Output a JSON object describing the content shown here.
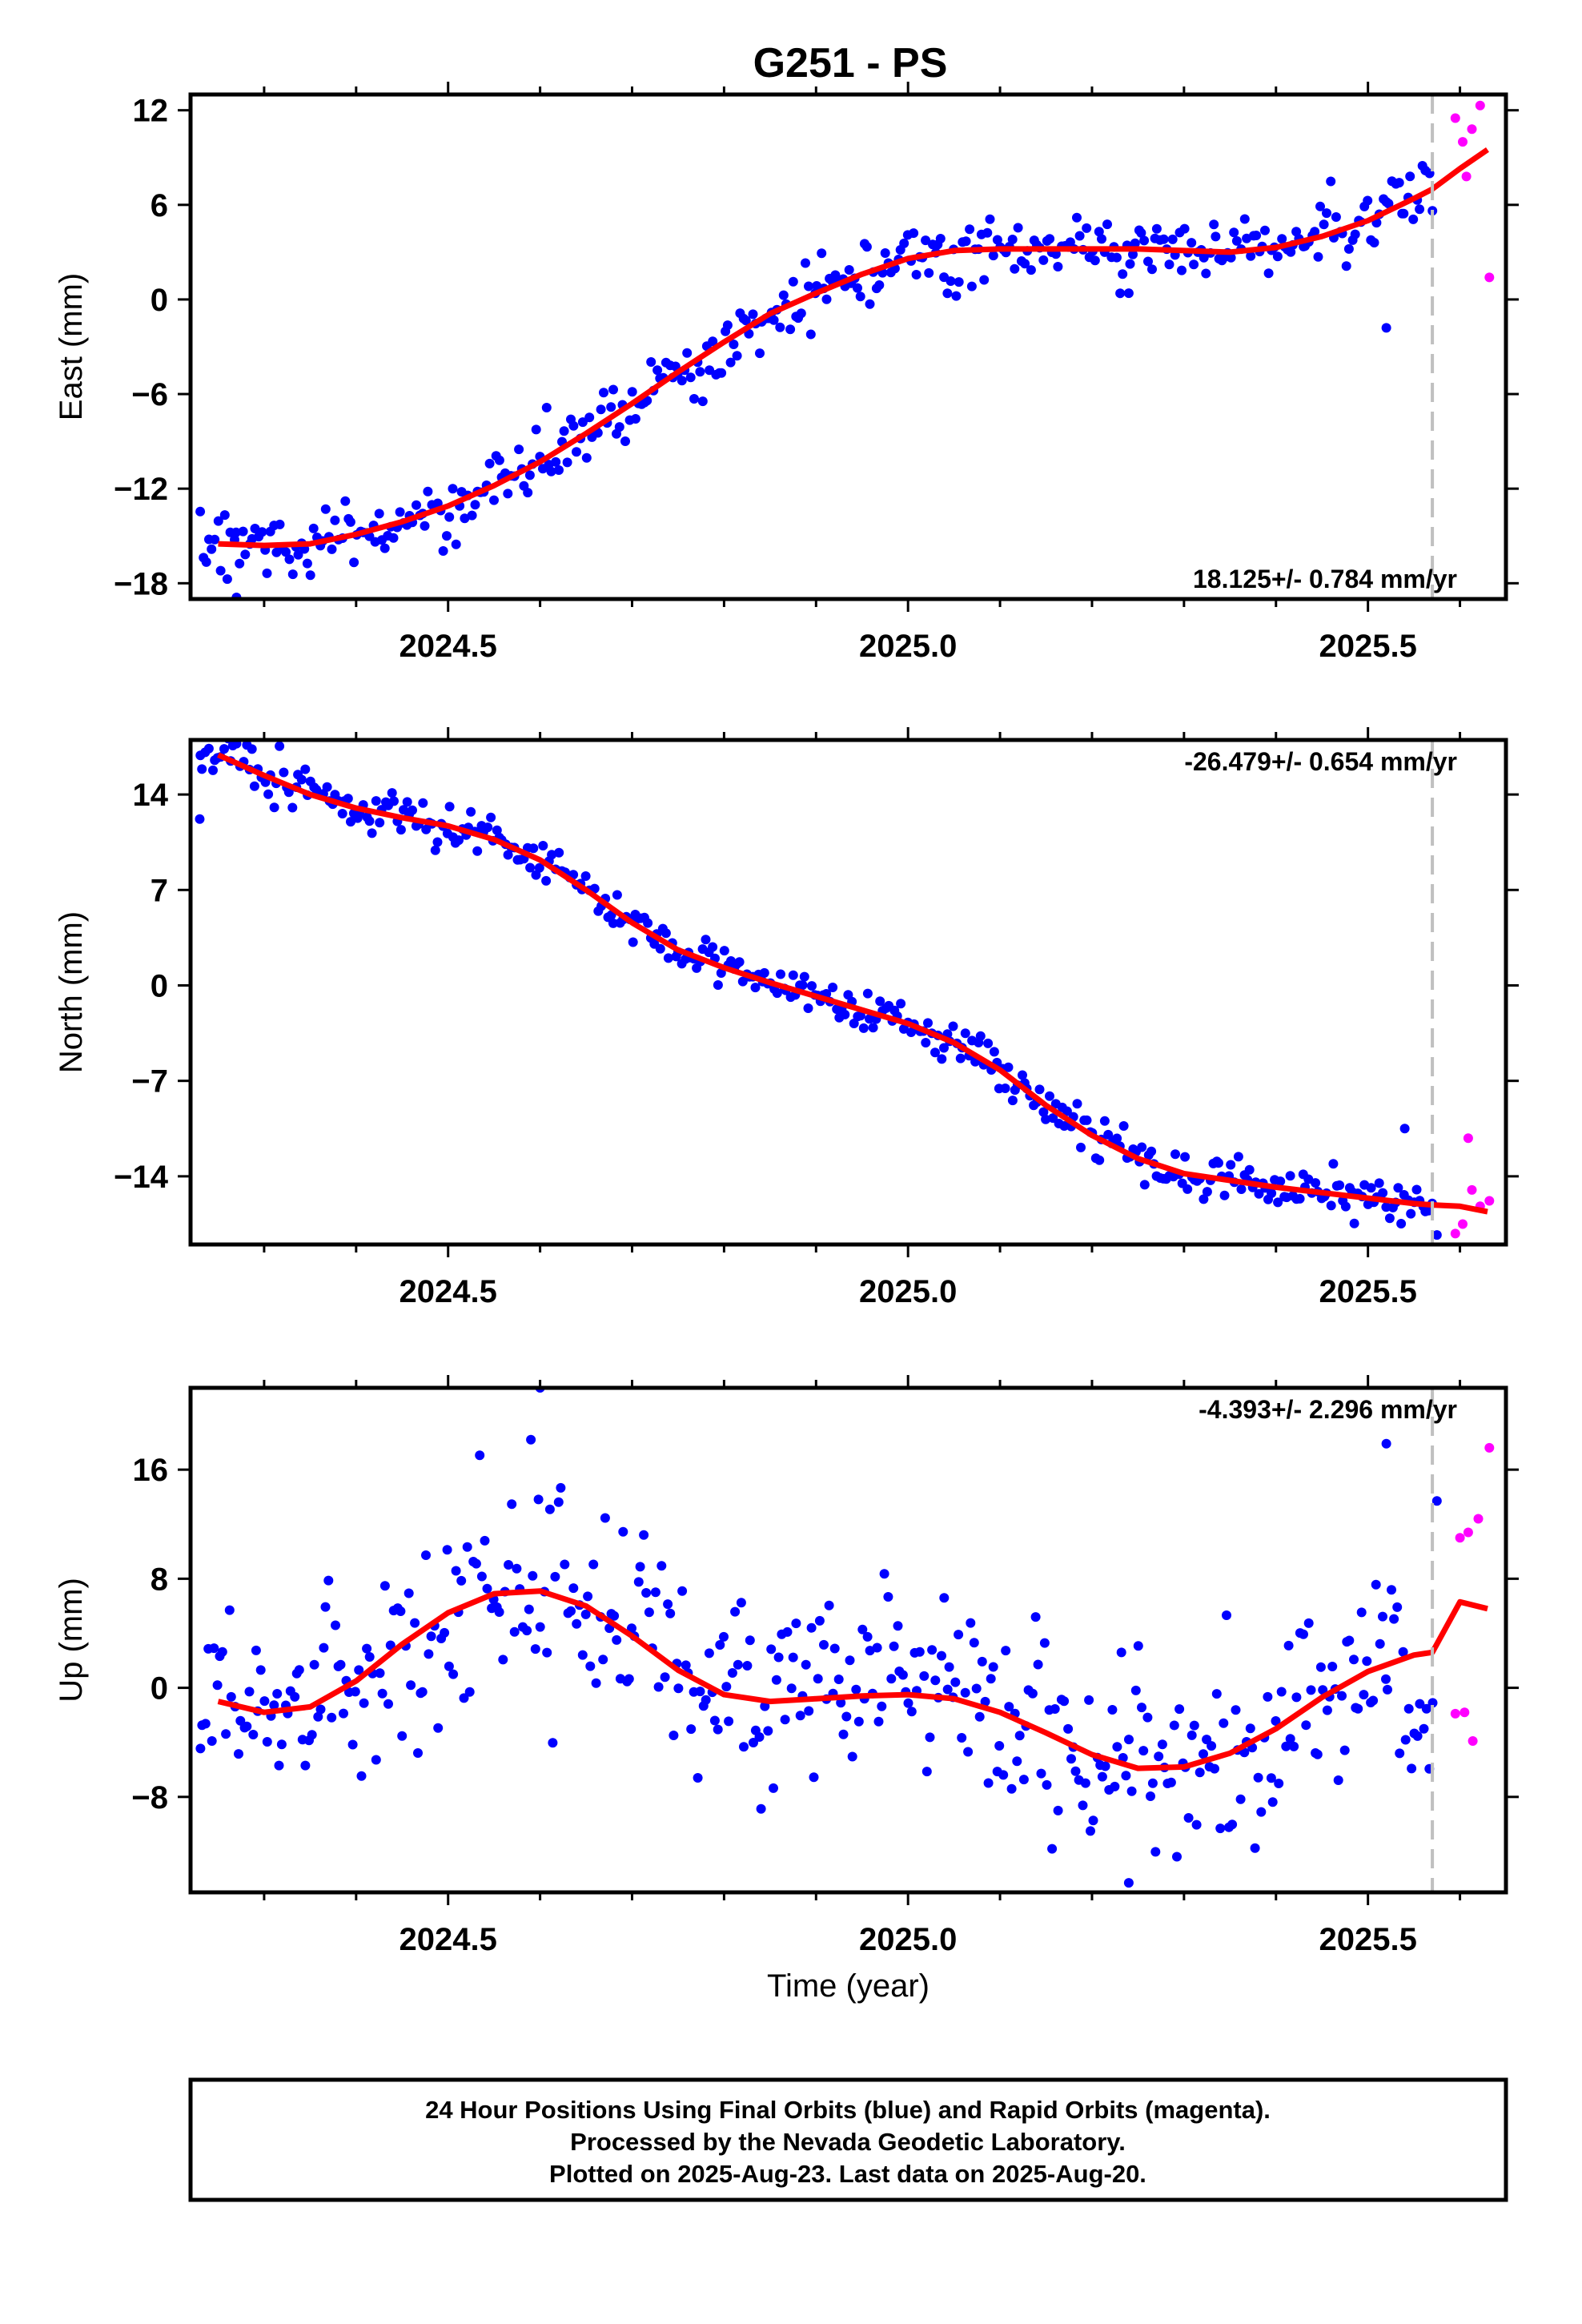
{
  "title": "G251 - PS",
  "colors": {
    "final": "#0000ff",
    "rapid": "#ff00ff",
    "model": "#ff0000",
    "cutoff": "#c0c0c0"
  },
  "chart_data": [
    {
      "type": "scatter",
      "component": "east",
      "ylabel": "East (mm)",
      "xlabel": "",
      "xlim": [
        2024.22,
        2025.65
      ],
      "ylim": [
        -19,
        13
      ],
      "xticks": [
        2024.5,
        2025.0,
        2025.5
      ],
      "xtick_labels": [
        "2024.5",
        "2025.0",
        "2025.5"
      ],
      "yticks": [
        12,
        6,
        0,
        -6,
        -12,
        -18
      ],
      "ytick_labels": [
        "12",
        "6",
        "0",
        "−6",
        "−12",
        "−18"
      ],
      "rate_text": "18.125+/- 0.784 mm/yr",
      "rate_position": "bottom-right",
      "last_final_epoch": 2025.57,
      "model": {
        "x": [
          2024.25,
          2024.3,
          2024.35,
          2024.4,
          2024.45,
          2024.5,
          2024.55,
          2024.6,
          2024.65,
          2024.7,
          2024.75,
          2024.8,
          2024.85,
          2024.9,
          2024.95,
          2025.0,
          2025.05,
          2025.1,
          2025.15,
          2025.2,
          2025.25,
          2025.3,
          2025.35,
          2025.4,
          2025.45,
          2025.5,
          2025.55,
          2025.57,
          2025.6,
          2025.63
        ],
        "y": [
          -15.5,
          -15.6,
          -15.5,
          -14.9,
          -14.1,
          -13.1,
          -11.8,
          -10.3,
          -8.5,
          -6.6,
          -4.6,
          -2.7,
          -0.9,
          0.4,
          1.6,
          2.6,
          3.1,
          3.2,
          3.2,
          3.2,
          3.2,
          3.1,
          3.0,
          3.3,
          4.0,
          5.0,
          6.4,
          7.0,
          8.3,
          9.5
        ]
      },
      "scatter_spec": {
        "x_start": 2024.23,
        "x_end": 2025.57,
        "n": 400,
        "noise": 0.95,
        "outliers": [
          [
            2024.27,
            -18.9
          ],
          [
            2025.24,
            0.4
          ],
          [
            2025.52,
            -1.8
          ]
        ]
      },
      "rapid_points": {
        "x": [
          2025.595,
          2025.603,
          2025.607,
          2025.613,
          2025.622,
          2025.632
        ],
        "y": [
          11.5,
          10.0,
          7.8,
          10.8,
          12.3,
          1.4
        ]
      }
    },
    {
      "type": "scatter",
      "component": "north",
      "ylabel": "North (mm)",
      "xlabel": "",
      "xlim": [
        2024.22,
        2025.65
      ],
      "ylim": [
        -19,
        18
      ],
      "xticks": [
        2024.5,
        2025.0,
        2025.5
      ],
      "xtick_labels": [
        "2024.5",
        "2025.0",
        "2025.5"
      ],
      "yticks": [
        14,
        7,
        0,
        -7,
        -14
      ],
      "ytick_labels": [
        "14",
        "7",
        "0",
        "−7",
        "−14"
      ],
      "rate_text": "-26.479+/- 0.654 mm/yr",
      "rate_position": "top-right",
      "last_final_epoch": 2025.57,
      "model": {
        "x": [
          2024.25,
          2024.3,
          2024.35,
          2024.4,
          2024.45,
          2024.5,
          2024.55,
          2024.6,
          2024.65,
          2024.7,
          2024.75,
          2024.8,
          2024.85,
          2024.9,
          2024.95,
          2025.0,
          2025.05,
          2025.1,
          2025.15,
          2025.2,
          2025.25,
          2025.3,
          2025.35,
          2025.4,
          2025.45,
          2025.5,
          2025.55,
          2025.57,
          2025.6,
          2025.63
        ],
        "y": [
          16.9,
          15.4,
          14.0,
          13.0,
          12.3,
          11.7,
          10.7,
          9.2,
          7.0,
          4.6,
          2.6,
          1.3,
          0.2,
          -0.8,
          -1.8,
          -2.8,
          -4.2,
          -6.2,
          -8.8,
          -11.0,
          -12.7,
          -13.8,
          -14.3,
          -14.8,
          -15.2,
          -15.6,
          -16.0,
          -16.1,
          -16.2,
          -16.6
        ]
      },
      "scatter_spec": {
        "x_start": 2024.23,
        "x_end": 2025.57,
        "n": 400,
        "noise": 0.8,
        "outliers": [
          [
            2024.23,
            12.2
          ],
          [
            2025.54,
            -10.5
          ],
          [
            2025.575,
            -18.3
          ]
        ]
      },
      "rapid_points": {
        "x": [
          2025.595,
          2025.603,
          2025.609,
          2025.613,
          2025.622,
          2025.632
        ],
        "y": [
          -18.2,
          -17.5,
          -11.2,
          -15.0,
          -16.2,
          -15.8
        ]
      }
    },
    {
      "type": "scatter",
      "component": "up",
      "ylabel": "Up (mm)",
      "xlabel": "Time (year)",
      "xlim": [
        2024.22,
        2025.65
      ],
      "ylim": [
        -15,
        22
      ],
      "xticks": [
        2024.5,
        2025.0,
        2025.5
      ],
      "xtick_labels": [
        "2024.5",
        "2025.0",
        "2025.5"
      ],
      "yticks": [
        16,
        8,
        0,
        -8
      ],
      "ytick_labels": [
        "16",
        "8",
        "0",
        "−8"
      ],
      "rate_text": "-4.393+/- 2.296 mm/yr",
      "rate_position": "top-right",
      "last_final_epoch": 2025.57,
      "model": {
        "x": [
          2024.25,
          2024.3,
          2024.35,
          2024.4,
          2024.45,
          2024.5,
          2024.55,
          2024.6,
          2024.65,
          2024.7,
          2024.75,
          2024.8,
          2024.85,
          2024.9,
          2024.95,
          2025.0,
          2025.05,
          2025.1,
          2025.15,
          2025.2,
          2025.25,
          2025.3,
          2025.35,
          2025.4,
          2025.45,
          2025.5,
          2025.55,
          2025.57,
          2025.6,
          2025.63
        ],
        "y": [
          -1.0,
          -1.8,
          -1.4,
          0.5,
          3.2,
          5.5,
          6.9,
          7.1,
          6.0,
          3.8,
          1.3,
          -0.5,
          -1.0,
          -0.8,
          -0.6,
          -0.5,
          -0.8,
          -1.8,
          -3.3,
          -4.9,
          -5.9,
          -5.8,
          -4.8,
          -3.0,
          -0.7,
          1.2,
          2.4,
          2.6,
          6.3,
          5.8
        ]
      },
      "scatter_spec": {
        "x_start": 2024.23,
        "x_end": 2025.57,
        "n": 420,
        "noise": 3.6,
        "outliers": [
          [
            2024.6,
            22.0
          ],
          [
            2024.59,
            18.2
          ],
          [
            2025.24,
            -14.3
          ],
          [
            2025.52,
            17.9
          ],
          [
            2025.575,
            13.7
          ]
        ]
      },
      "rapid_points": {
        "x": [
          2025.595,
          2025.6,
          2025.605,
          2025.609,
          2025.614,
          2025.62,
          2025.632
        ],
        "y": [
          -1.9,
          11.0,
          -1.8,
          11.4,
          -3.9,
          12.4,
          17.6
        ]
      }
    }
  ],
  "footer": {
    "line1": "24 Hour Positions Using Final Orbits (blue) and Rapid Orbits (magenta).",
    "line2": "Processed by the Nevada Geodetic Laboratory.",
    "line3": "Plotted on 2025-Aug-23. Last data on 2025-Aug-20."
  }
}
